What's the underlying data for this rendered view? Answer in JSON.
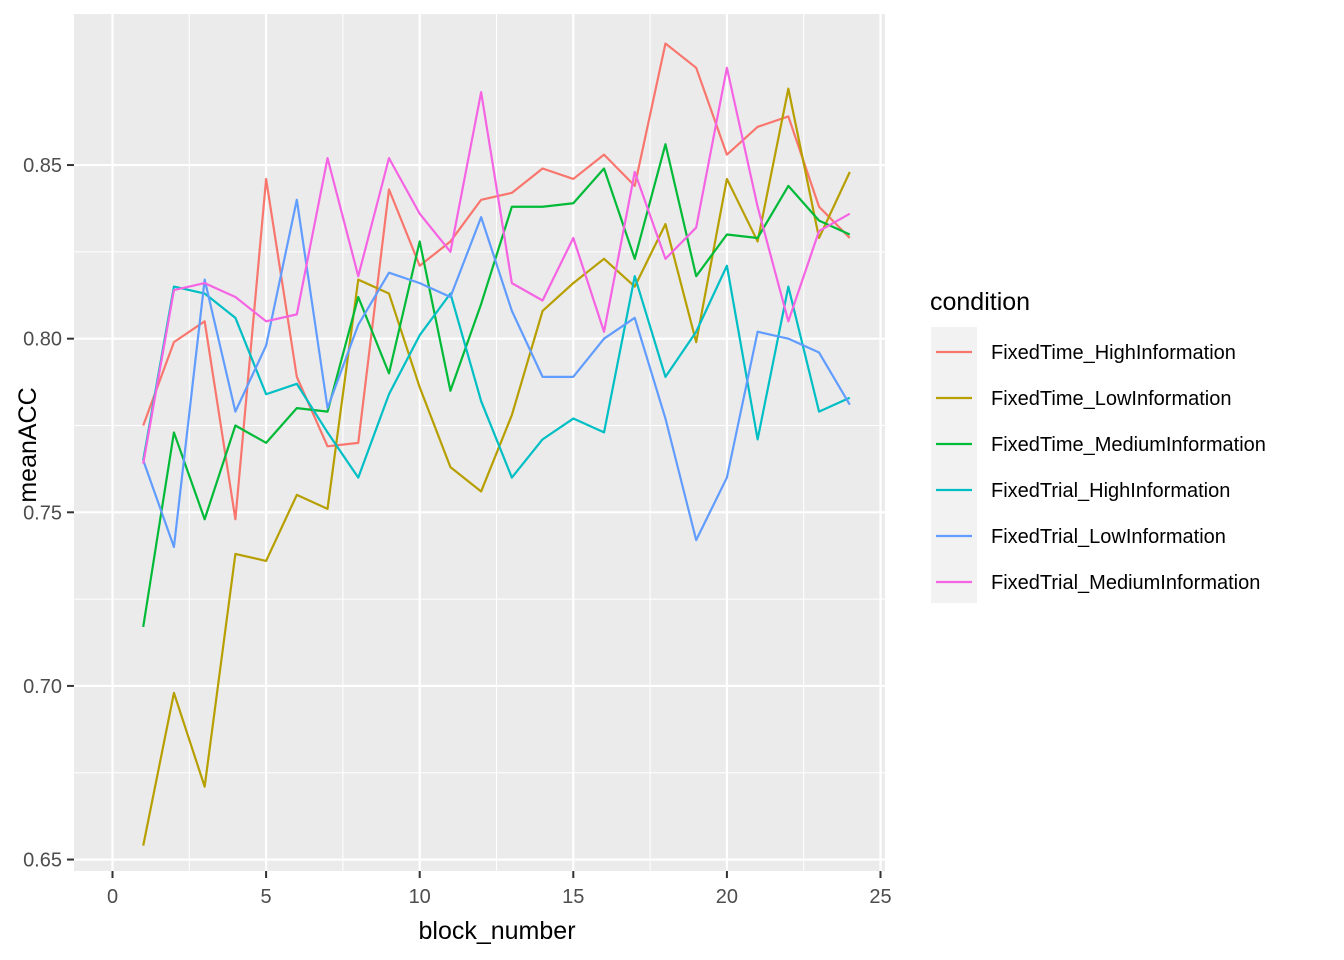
{
  "chart_data": {
    "type": "line",
    "title": "",
    "xlabel": "block_number",
    "ylabel": "meanACC",
    "xlim": [
      0,
      25
    ],
    "ylim": [
      0.6467,
      0.8935
    ],
    "x_ticks": [
      0,
      5,
      10,
      15,
      20,
      25
    ],
    "x_tick_labels": [
      "0",
      "5",
      "10",
      "15",
      "20",
      "25"
    ],
    "y_ticks": [
      0.65,
      0.7,
      0.75,
      0.8,
      0.85
    ],
    "y_tick_labels": [
      "0.65",
      "0.70",
      "0.75",
      "0.80",
      "0.85"
    ],
    "grid": true,
    "legend_position": "right",
    "legend_title": "condition",
    "panel_background": "#ebebeb",
    "x": [
      1,
      2,
      3,
      4,
      5,
      6,
      7,
      8,
      9,
      10,
      11,
      12,
      13,
      14,
      15,
      16,
      17,
      18,
      19,
      20,
      21,
      22,
      23,
      24
    ],
    "series": [
      {
        "name": "FixedTime_HighInformation",
        "color": "#f8766d",
        "values": [
          0.775,
          0.799,
          0.805,
          0.748,
          0.846,
          0.789,
          0.769,
          0.77,
          0.843,
          0.821,
          0.828,
          0.84,
          0.842,
          0.849,
          0.846,
          0.853,
          0.844,
          0.885,
          0.878,
          0.853,
          0.861,
          0.864,
          0.838,
          0.829
        ]
      },
      {
        "name": "FixedTime_LowInformation",
        "color": "#b79f00",
        "values": [
          0.654,
          0.698,
          0.671,
          0.738,
          0.736,
          0.755,
          0.751,
          0.817,
          0.813,
          0.786,
          0.763,
          0.756,
          0.778,
          0.808,
          0.816,
          0.823,
          0.815,
          0.833,
          0.799,
          0.846,
          0.828,
          0.872,
          0.829,
          0.848
        ]
      },
      {
        "name": "FixedTime_MediumInformation",
        "color": "#00ba38",
        "values": [
          0.717,
          0.773,
          0.748,
          0.775,
          0.77,
          0.78,
          0.779,
          0.812,
          0.79,
          0.828,
          0.785,
          0.81,
          0.838,
          0.838,
          0.839,
          0.849,
          0.823,
          0.856,
          0.818,
          0.83,
          0.829,
          0.844,
          0.834,
          0.83
        ]
      },
      {
        "name": "FixedTrial_HighInformation",
        "color": "#00bfc4",
        "values": [
          0.765,
          0.815,
          0.813,
          0.806,
          0.784,
          0.787,
          0.773,
          0.76,
          0.784,
          0.801,
          0.813,
          0.782,
          0.76,
          0.771,
          0.777,
          0.773,
          0.818,
          0.789,
          0.802,
          0.821,
          0.771,
          0.815,
          0.779,
          0.783
        ]
      },
      {
        "name": "FixedTrial_LowInformation",
        "color": "#619cff",
        "values": [
          0.765,
          0.74,
          0.817,
          0.779,
          0.798,
          0.84,
          0.78,
          0.804,
          0.819,
          0.816,
          0.812,
          0.835,
          0.808,
          0.789,
          0.789,
          0.8,
          0.806,
          0.777,
          0.742,
          0.76,
          0.802,
          0.8,
          0.796,
          0.781
        ]
      },
      {
        "name": "FixedTrial_MediumInformation",
        "color": "#f564e3",
        "values": [
          0.764,
          0.814,
          0.816,
          0.812,
          0.805,
          0.807,
          0.852,
          0.818,
          0.852,
          0.836,
          0.825,
          0.871,
          0.816,
          0.811,
          0.829,
          0.802,
          0.848,
          0.823,
          0.832,
          0.878,
          0.838,
          0.805,
          0.831,
          0.836
        ]
      }
    ]
  }
}
